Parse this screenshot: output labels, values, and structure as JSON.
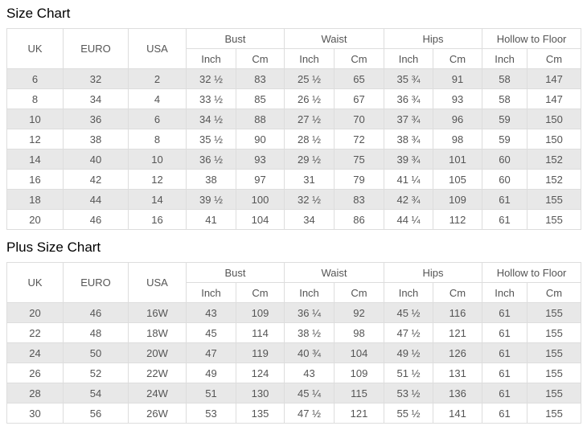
{
  "colors": {
    "stripe_row": "#e8e8e8",
    "border": "#dddddd",
    "cell_text": "#555555",
    "title_text": "#000000",
    "background": "#ffffff"
  },
  "size_chart": {
    "title": "Size Chart",
    "columns": {
      "plain": [
        "UK",
        "EURO",
        "USA"
      ],
      "groups": [
        "Bust",
        "Waist",
        "Hips",
        "Hollow to Floor"
      ],
      "units": [
        "Inch",
        "Cm"
      ]
    },
    "rows": [
      [
        "6",
        "32",
        "2",
        "32 ½",
        "83",
        "25 ½",
        "65",
        "35 ¾",
        "91",
        "58",
        "147"
      ],
      [
        "8",
        "34",
        "4",
        "33 ½",
        "85",
        "26 ½",
        "67",
        "36 ¾",
        "93",
        "58",
        "147"
      ],
      [
        "10",
        "36",
        "6",
        "34 ½",
        "88",
        "27 ½",
        "70",
        "37 ¾",
        "96",
        "59",
        "150"
      ],
      [
        "12",
        "38",
        "8",
        "35 ½",
        "90",
        "28 ½",
        "72",
        "38 ¾",
        "98",
        "59",
        "150"
      ],
      [
        "14",
        "40",
        "10",
        "36 ½",
        "93",
        "29 ½",
        "75",
        "39 ¾",
        "101",
        "60",
        "152"
      ],
      [
        "16",
        "42",
        "12",
        "38",
        "97",
        "31",
        "79",
        "41 ¼",
        "105",
        "60",
        "152"
      ],
      [
        "18",
        "44",
        "14",
        "39 ½",
        "100",
        "32 ½",
        "83",
        "42 ¾",
        "109",
        "61",
        "155"
      ],
      [
        "20",
        "46",
        "16",
        "41",
        "104",
        "34",
        "86",
        "44 ¼",
        "112",
        "61",
        "155"
      ]
    ]
  },
  "plus_size_chart": {
    "title": "Plus Size Chart",
    "columns": {
      "plain": [
        "UK",
        "EURO",
        "USA"
      ],
      "groups": [
        "Bust",
        "Waist",
        "Hips",
        "Hollow to Floor"
      ],
      "units": [
        "Inch",
        "Cm"
      ]
    },
    "rows": [
      [
        "20",
        "46",
        "16W",
        "43",
        "109",
        "36 ¼",
        "92",
        "45 ½",
        "116",
        "61",
        "155"
      ],
      [
        "22",
        "48",
        "18W",
        "45",
        "114",
        "38 ½",
        "98",
        "47 ½",
        "121",
        "61",
        "155"
      ],
      [
        "24",
        "50",
        "20W",
        "47",
        "119",
        "40 ¾",
        "104",
        "49 ½",
        "126",
        "61",
        "155"
      ],
      [
        "26",
        "52",
        "22W",
        "49",
        "124",
        "43",
        "109",
        "51 ½",
        "131",
        "61",
        "155"
      ],
      [
        "28",
        "54",
        "24W",
        "51",
        "130",
        "45 ¼",
        "115",
        "53 ½",
        "136",
        "61",
        "155"
      ],
      [
        "30",
        "56",
        "26W",
        "53",
        "135",
        "47 ½",
        "121",
        "55 ½",
        "141",
        "61",
        "155"
      ]
    ]
  }
}
